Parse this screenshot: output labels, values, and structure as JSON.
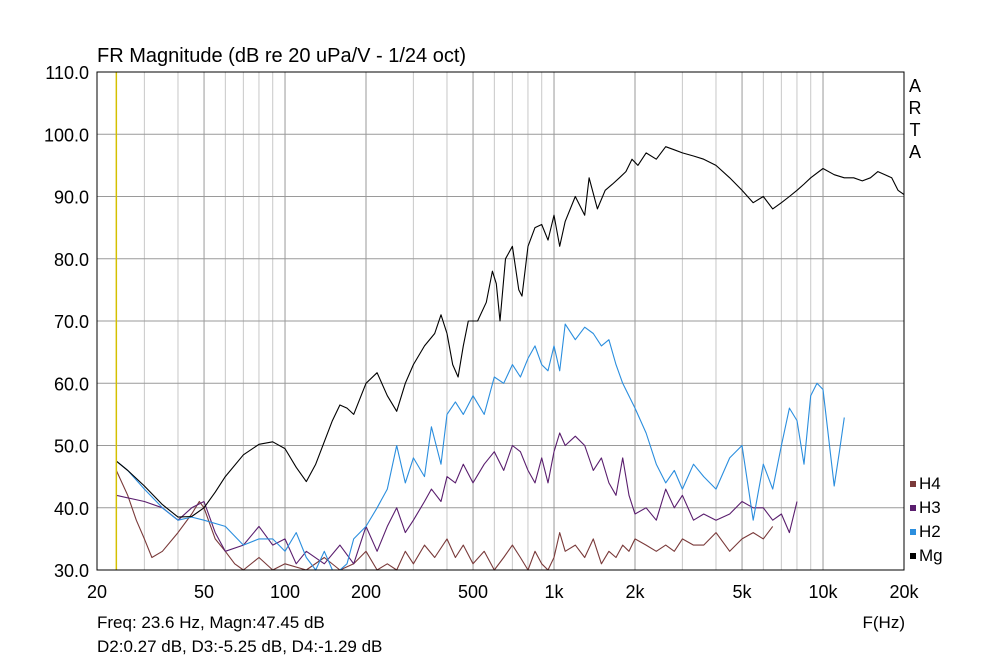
{
  "chart_data": {
    "type": "line",
    "title": "FR Magnitude (dB re 20 uPa/V - 1/24 oct)",
    "xlabel": "F(Hz)",
    "ylabel": "",
    "x_scale": "log",
    "xlim": [
      20,
      20000
    ],
    "ylim": [
      30,
      110
    ],
    "grid": true,
    "x_ticks": [
      20,
      50,
      100,
      200,
      500,
      1000,
      2000,
      5000,
      10000,
      20000
    ],
    "x_tick_labels": [
      "20",
      "50",
      "100",
      "200",
      "500",
      "1k",
      "2k",
      "5k",
      "10k",
      "20k"
    ],
    "y_ticks": [
      30,
      40,
      50,
      60,
      70,
      80,
      90,
      100,
      110
    ],
    "y_tick_labels": [
      "30.0",
      "40.0",
      "50.0",
      "60.0",
      "70.0",
      "80.0",
      "90.0",
      "100.0",
      "110.0"
    ],
    "watermark": [
      "A",
      "R",
      "T",
      "A"
    ],
    "legend_position": "bottom-right",
    "cursor_freq": 23.6,
    "cursor_color": "#d4c000",
    "series": [
      {
        "name": "Mg",
        "color": "#000000",
        "points": [
          [
            23.6,
            47.5
          ],
          [
            26,
            46
          ],
          [
            30,
            43.5
          ],
          [
            35,
            40.5
          ],
          [
            40,
            38.5
          ],
          [
            45,
            38.6
          ],
          [
            50,
            40
          ],
          [
            55,
            42.5
          ],
          [
            60,
            45
          ],
          [
            70,
            48.5
          ],
          [
            80,
            50.2
          ],
          [
            90,
            50.6
          ],
          [
            100,
            49.5
          ],
          [
            110,
            46.5
          ],
          [
            120,
            44.2
          ],
          [
            130,
            47
          ],
          [
            150,
            54
          ],
          [
            160,
            56.5
          ],
          [
            170,
            56
          ],
          [
            180,
            55
          ],
          [
            200,
            60
          ],
          [
            220,
            61.7
          ],
          [
            240,
            58
          ],
          [
            260,
            55.5
          ],
          [
            280,
            60
          ],
          [
            300,
            63
          ],
          [
            330,
            66
          ],
          [
            360,
            68
          ],
          [
            380,
            71
          ],
          [
            400,
            68
          ],
          [
            420,
            63
          ],
          [
            440,
            61
          ],
          [
            460,
            66
          ],
          [
            480,
            70
          ],
          [
            520,
            70
          ],
          [
            560,
            73
          ],
          [
            590,
            78
          ],
          [
            610,
            76
          ],
          [
            630,
            70
          ],
          [
            660,
            80
          ],
          [
            700,
            82
          ],
          [
            740,
            75
          ],
          [
            760,
            74
          ],
          [
            800,
            82
          ],
          [
            850,
            85
          ],
          [
            900,
            85.5
          ],
          [
            950,
            83
          ],
          [
            1000,
            87
          ],
          [
            1050,
            82
          ],
          [
            1100,
            86
          ],
          [
            1200,
            90
          ],
          [
            1300,
            87
          ],
          [
            1350,
            93
          ],
          [
            1450,
            88
          ],
          [
            1550,
            91
          ],
          [
            1650,
            92
          ],
          [
            1750,
            93
          ],
          [
            1850,
            94
          ],
          [
            1950,
            96
          ],
          [
            2050,
            95
          ],
          [
            2200,
            97
          ],
          [
            2400,
            96
          ],
          [
            2600,
            98
          ],
          [
            2800,
            97.5
          ],
          [
            3000,
            97
          ],
          [
            3300,
            96.5
          ],
          [
            3600,
            96
          ],
          [
            4000,
            95
          ],
          [
            4500,
            93
          ],
          [
            5000,
            91
          ],
          [
            5500,
            89
          ],
          [
            6000,
            90
          ],
          [
            6500,
            88
          ],
          [
            7000,
            89
          ],
          [
            7500,
            90
          ],
          [
            8000,
            91
          ],
          [
            8500,
            92
          ],
          [
            9000,
            93
          ],
          [
            10000,
            94.5
          ],
          [
            11000,
            93.5
          ],
          [
            12000,
            93
          ],
          [
            13000,
            93
          ],
          [
            14000,
            92.5
          ],
          [
            15000,
            93
          ],
          [
            16000,
            94
          ],
          [
            17000,
            93.5
          ],
          [
            18000,
            93
          ],
          [
            19000,
            91
          ],
          [
            20000,
            90.3
          ]
        ]
      },
      {
        "name": "H2",
        "color": "#2b8ede",
        "points": [
          [
            23.6,
            47.5
          ],
          [
            26,
            46
          ],
          [
            30,
            43
          ],
          [
            35,
            40
          ],
          [
            40,
            38
          ],
          [
            45,
            38.5
          ],
          [
            50,
            38
          ],
          [
            60,
            37
          ],
          [
            70,
            34
          ],
          [
            80,
            35
          ],
          [
            90,
            35
          ],
          [
            100,
            33
          ],
          [
            110,
            36
          ],
          [
            120,
            32
          ],
          [
            130,
            30
          ],
          [
            140,
            33
          ],
          [
            150,
            30
          ],
          [
            160,
            30
          ],
          [
            170,
            31
          ],
          [
            180,
            35
          ],
          [
            200,
            37
          ],
          [
            220,
            40
          ],
          [
            240,
            43
          ],
          [
            260,
            50
          ],
          [
            280,
            44
          ],
          [
            300,
            48
          ],
          [
            330,
            45
          ],
          [
            350,
            53
          ],
          [
            380,
            47
          ],
          [
            400,
            55
          ],
          [
            430,
            57
          ],
          [
            460,
            55
          ],
          [
            500,
            58
          ],
          [
            550,
            55
          ],
          [
            600,
            61
          ],
          [
            650,
            60
          ],
          [
            700,
            63
          ],
          [
            750,
            61
          ],
          [
            800,
            64
          ],
          [
            850,
            66
          ],
          [
            900,
            63
          ],
          [
            950,
            62
          ],
          [
            1000,
            66
          ],
          [
            1050,
            62
          ],
          [
            1100,
            69.5
          ],
          [
            1200,
            67
          ],
          [
            1300,
            69
          ],
          [
            1400,
            68
          ],
          [
            1500,
            66
          ],
          [
            1600,
            67
          ],
          [
            1700,
            63
          ],
          [
            1800,
            60
          ],
          [
            2000,
            56
          ],
          [
            2200,
            52
          ],
          [
            2400,
            47
          ],
          [
            2600,
            44
          ],
          [
            2800,
            46
          ],
          [
            3000,
            43
          ],
          [
            3300,
            47
          ],
          [
            3600,
            45
          ],
          [
            4000,
            43
          ],
          [
            4500,
            48
          ],
          [
            5000,
            50
          ],
          [
            5500,
            38
          ],
          [
            6000,
            47
          ],
          [
            6500,
            43
          ],
          [
            7000,
            50
          ],
          [
            7500,
            56
          ],
          [
            8000,
            54
          ],
          [
            8500,
            47
          ],
          [
            9000,
            58
          ],
          [
            9500,
            60
          ],
          [
            10000,
            59
          ],
          [
            11000,
            43.5
          ],
          [
            11500,
            49
          ],
          [
            12000,
            54.5
          ]
        ]
      },
      {
        "name": "H3",
        "color": "#5a1e6e",
        "points": [
          [
            23.6,
            42
          ],
          [
            30,
            41
          ],
          [
            35,
            40
          ],
          [
            40,
            38
          ],
          [
            45,
            40
          ],
          [
            50,
            41
          ],
          [
            55,
            36
          ],
          [
            60,
            33
          ],
          [
            70,
            34
          ],
          [
            80,
            37
          ],
          [
            90,
            34
          ],
          [
            100,
            35
          ],
          [
            110,
            31
          ],
          [
            120,
            33
          ],
          [
            140,
            31
          ],
          [
            160,
            34
          ],
          [
            180,
            31
          ],
          [
            200,
            37
          ],
          [
            220,
            33
          ],
          [
            240,
            37
          ],
          [
            260,
            40
          ],
          [
            280,
            36
          ],
          [
            300,
            38
          ],
          [
            330,
            41
          ],
          [
            350,
            43
          ],
          [
            380,
            41
          ],
          [
            400,
            45
          ],
          [
            430,
            44
          ],
          [
            460,
            47
          ],
          [
            500,
            44
          ],
          [
            550,
            47
          ],
          [
            600,
            49
          ],
          [
            650,
            46
          ],
          [
            700,
            50
          ],
          [
            750,
            49
          ],
          [
            800,
            46
          ],
          [
            850,
            44
          ],
          [
            900,
            48
          ],
          [
            950,
            44
          ],
          [
            1000,
            49
          ],
          [
            1050,
            52
          ],
          [
            1100,
            50
          ],
          [
            1200,
            51.5
          ],
          [
            1300,
            50
          ],
          [
            1400,
            46
          ],
          [
            1500,
            48
          ],
          [
            1600,
            44
          ],
          [
            1700,
            42
          ],
          [
            1800,
            48
          ],
          [
            1900,
            42
          ],
          [
            2000,
            39
          ],
          [
            2200,
            40
          ],
          [
            2400,
            38
          ],
          [
            2600,
            43
          ],
          [
            2800,
            40
          ],
          [
            3000,
            42
          ],
          [
            3300,
            38
          ],
          [
            3600,
            39
          ],
          [
            4000,
            38
          ],
          [
            4500,
            39
          ],
          [
            5000,
            41
          ],
          [
            5500,
            40
          ],
          [
            6000,
            40
          ],
          [
            6500,
            38
          ],
          [
            7000,
            39
          ],
          [
            7500,
            36
          ],
          [
            8000,
            41
          ]
        ]
      },
      {
        "name": "H4",
        "color": "#7a3a3a",
        "points": [
          [
            23.6,
            46
          ],
          [
            26,
            42
          ],
          [
            28,
            38
          ],
          [
            30,
            35
          ],
          [
            32,
            32
          ],
          [
            35,
            33
          ],
          [
            40,
            36
          ],
          [
            45,
            39
          ],
          [
            48,
            41
          ],
          [
            50,
            40
          ],
          [
            55,
            35
          ],
          [
            60,
            33
          ],
          [
            65,
            31
          ],
          [
            70,
            30
          ],
          [
            80,
            32
          ],
          [
            90,
            30
          ],
          [
            100,
            31
          ],
          [
            120,
            30
          ],
          [
            140,
            32
          ],
          [
            160,
            30
          ],
          [
            180,
            31
          ],
          [
            200,
            33
          ],
          [
            220,
            30
          ],
          [
            240,
            31
          ],
          [
            260,
            30
          ],
          [
            280,
            33
          ],
          [
            300,
            31
          ],
          [
            330,
            34
          ],
          [
            360,
            32
          ],
          [
            400,
            35
          ],
          [
            430,
            32
          ],
          [
            460,
            34
          ],
          [
            500,
            31
          ],
          [
            550,
            33
          ],
          [
            600,
            30
          ],
          [
            650,
            32
          ],
          [
            700,
            34
          ],
          [
            750,
            32
          ],
          [
            800,
            30
          ],
          [
            850,
            33
          ],
          [
            900,
            31
          ],
          [
            950,
            30
          ],
          [
            1000,
            32
          ],
          [
            1050,
            36
          ],
          [
            1100,
            33
          ],
          [
            1200,
            34
          ],
          [
            1300,
            32
          ],
          [
            1400,
            35
          ],
          [
            1500,
            31
          ],
          [
            1600,
            33
          ],
          [
            1700,
            32
          ],
          [
            1800,
            34
          ],
          [
            1900,
            33
          ],
          [
            2000,
            35
          ],
          [
            2200,
            34
          ],
          [
            2400,
            33
          ],
          [
            2600,
            34
          ],
          [
            2800,
            33
          ],
          [
            3000,
            35
          ],
          [
            3300,
            34
          ],
          [
            3600,
            34
          ],
          [
            4000,
            36
          ],
          [
            4500,
            33
          ],
          [
            5000,
            35
          ],
          [
            5500,
            36
          ],
          [
            6000,
            35
          ],
          [
            6500,
            37
          ]
        ]
      }
    ]
  },
  "readout": {
    "line1": "Freq: 23.6 Hz, Magn:47.45 dB",
    "line2": "D2:0.27 dB, D3:-5.25 dB, D4:-1.29 dB"
  }
}
